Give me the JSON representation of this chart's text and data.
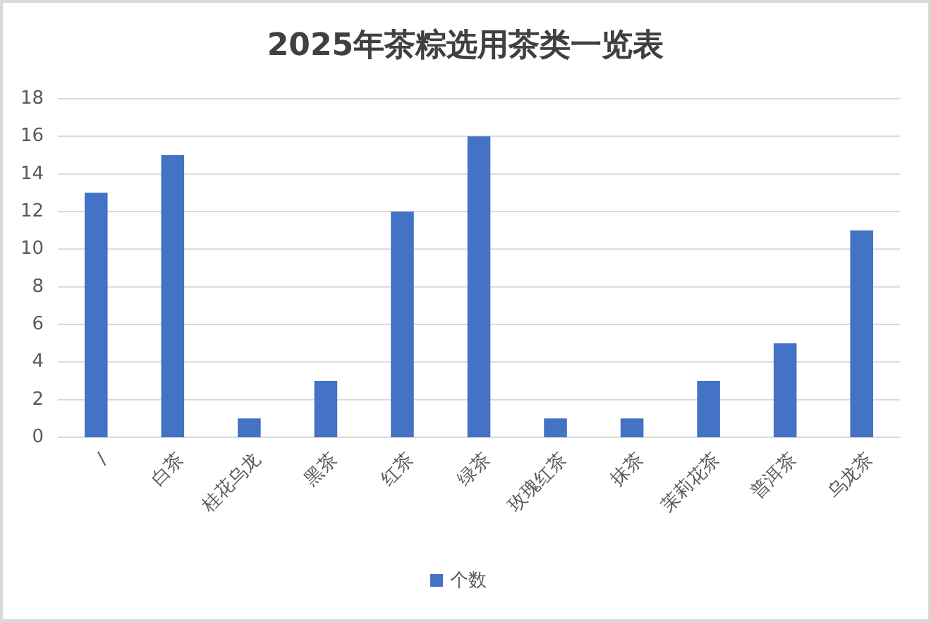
{
  "chart_data": {
    "type": "bar",
    "title": "2025年茶粽选用茶类一览表",
    "categories": [
      "/",
      "白茶",
      "桂花乌龙",
      "黑茶",
      "红茶",
      "绿茶",
      "玫瑰红茶",
      "抹茶",
      "茉莉花茶",
      "普洱茶",
      "乌龙茶"
    ],
    "series": [
      {
        "name": "个数",
        "color": "#4472c4",
        "values": [
          13,
          15,
          1,
          3,
          12,
          16,
          1,
          1,
          3,
          5,
          11
        ]
      }
    ],
    "ylim": [
      0,
      18
    ],
    "yticks": [
      0,
      2,
      4,
      6,
      8,
      10,
      12,
      14,
      16,
      18
    ],
    "grid": "y",
    "legend": "bottom"
  }
}
